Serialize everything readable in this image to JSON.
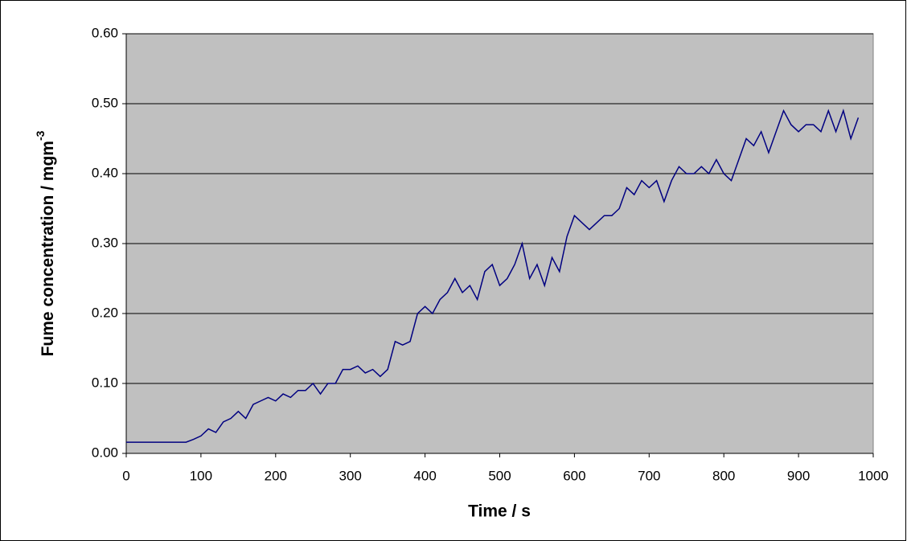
{
  "chart_data": {
    "type": "line",
    "x_label": "Time / s",
    "y_label": "Fume concentration / mgm",
    "y_label_superscript": "-3",
    "x": [
      0,
      10,
      20,
      30,
      40,
      50,
      60,
      70,
      80,
      90,
      100,
      110,
      120,
      130,
      140,
      150,
      160,
      170,
      180,
      190,
      200,
      210,
      220,
      230,
      240,
      250,
      260,
      270,
      280,
      290,
      300,
      310,
      320,
      330,
      340,
      350,
      360,
      370,
      380,
      390,
      400,
      410,
      420,
      430,
      440,
      450,
      460,
      470,
      480,
      490,
      500,
      510,
      520,
      530,
      540,
      550,
      560,
      570,
      580,
      590,
      600,
      610,
      620,
      630,
      640,
      650,
      660,
      670,
      680,
      690,
      700,
      710,
      720,
      730,
      740,
      750,
      760,
      770,
      780,
      790,
      800,
      810,
      820,
      830,
      840,
      850,
      860,
      870,
      880,
      890,
      900,
      910,
      920,
      930,
      940,
      950,
      960,
      970,
      980
    ],
    "series": [
      {
        "name": "Fume concentration",
        "color": "#000080",
        "values": [
          0.016,
          0.016,
          0.016,
          0.016,
          0.016,
          0.016,
          0.016,
          0.016,
          0.016,
          0.02,
          0.025,
          0.035,
          0.03,
          0.045,
          0.05,
          0.06,
          0.05,
          0.07,
          0.075,
          0.08,
          0.075,
          0.085,
          0.08,
          0.09,
          0.09,
          0.1,
          0.085,
          0.1,
          0.1,
          0.12,
          0.12,
          0.125,
          0.115,
          0.12,
          0.11,
          0.12,
          0.16,
          0.155,
          0.16,
          0.2,
          0.21,
          0.2,
          0.22,
          0.23,
          0.25,
          0.23,
          0.24,
          0.22,
          0.26,
          0.27,
          0.24,
          0.25,
          0.27,
          0.3,
          0.25,
          0.27,
          0.24,
          0.28,
          0.26,
          0.31,
          0.34,
          0.33,
          0.32,
          0.33,
          0.34,
          0.34,
          0.35,
          0.38,
          0.37,
          0.39,
          0.38,
          0.39,
          0.36,
          0.39,
          0.41,
          0.4,
          0.4,
          0.41,
          0.4,
          0.42,
          0.4,
          0.39,
          0.42,
          0.45,
          0.44,
          0.46,
          0.43,
          0.46,
          0.49,
          0.47,
          0.46,
          0.47,
          0.47,
          0.46,
          0.49,
          0.46,
          0.49,
          0.45,
          0.48
        ]
      }
    ],
    "xlim": [
      0,
      1000
    ],
    "xticks": [
      0,
      100,
      200,
      300,
      400,
      500,
      600,
      700,
      800,
      900,
      1000
    ],
    "ylim": [
      0,
      0.6
    ],
    "yticks": [
      {
        "value": 0,
        "label": "0.00"
      },
      {
        "value": 0.1,
        "label": "0.10"
      },
      {
        "value": 0.2,
        "label": "0.20"
      },
      {
        "value": 0.3,
        "label": "0.30"
      },
      {
        "value": 0.4,
        "label": "0.40"
      },
      {
        "value": 0.5,
        "label": "0.50"
      },
      {
        "value": 0.6,
        "label": "0.60"
      }
    ],
    "grid": true,
    "plot_background": "#c0c0c0"
  }
}
